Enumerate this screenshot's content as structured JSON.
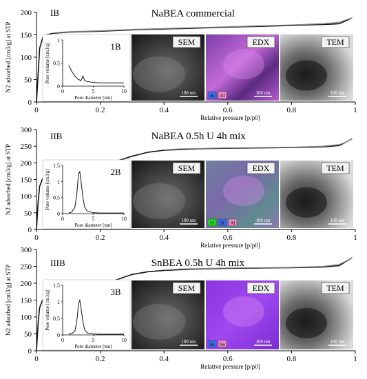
{
  "chart_data": [
    {
      "type": "line",
      "panel": "IB",
      "title": "NaBEA commercial",
      "xlabel": "Relative pressure [p/p0]",
      "ylabel": "N2 adsorbed [cm3/g] at STP",
      "xlim": [
        0,
        1
      ],
      "ylim": [
        0,
        200
      ],
      "xticks": [
        "0",
        "0.2",
        "0.4",
        "0.6",
        "0.8",
        "1"
      ],
      "yticks": [
        "0",
        "50",
        "100",
        "150",
        "200"
      ],
      "series": [
        {
          "kind": "adsorption",
          "x": [
            0,
            0.005,
            0.01,
            0.02,
            0.03,
            0.05,
            0.08,
            0.1,
            0.15,
            0.2,
            0.3,
            0.4,
            0.5,
            0.6,
            0.7,
            0.8,
            0.85,
            0.9,
            0.93,
            0.95,
            0.97,
            0.99
          ],
          "y": [
            0,
            60,
            120,
            145,
            150,
            153,
            155,
            156,
            157,
            158,
            161,
            163,
            165,
            167,
            169,
            171,
            172,
            173,
            174,
            175,
            181,
            188
          ]
        },
        {
          "kind": "desorption",
          "x": [
            0.99,
            0.97,
            0.95,
            0.9,
            0.8,
            0.7,
            0.6,
            0.5,
            0.4,
            0.3,
            0.2,
            0.1,
            0.05
          ],
          "y": [
            188,
            183,
            178,
            175,
            172,
            170,
            168,
            166,
            164,
            162,
            159,
            157,
            154
          ]
        }
      ],
      "inset": {
        "label": "1B",
        "xlabel": "Pore diameter [nm]",
        "ylabel": "Pore volume [cm3/g]",
        "xlim": [
          0,
          10
        ],
        "ylim": [
          0,
          1
        ],
        "xticks": [
          "0",
          "5",
          "10"
        ],
        "yticks": [
          "0",
          "0.5",
          "1"
        ],
        "x": [
          1,
          1.5,
          2,
          2.5,
          3,
          3.3,
          3.6,
          4,
          5,
          6,
          8,
          10
        ],
        "y": [
          0.45,
          0.32,
          0.22,
          0.15,
          0.12,
          0.22,
          0.12,
          0.1,
          0.08,
          0.07,
          0.07,
          0.07
        ]
      },
      "images": [
        {
          "label": "SEM",
          "scale": "100 nm",
          "legend": []
        },
        {
          "label": "EDX",
          "scale": "100 nm",
          "legend": [
            {
              "text": "Si",
              "color": "#3a6ee8"
            },
            {
              "text": "Al",
              "color": "#f08cc8"
            }
          ]
        },
        {
          "label": "TEM",
          "scale": "100 nm",
          "legend": []
        }
      ]
    },
    {
      "type": "line",
      "panel": "IIB",
      "title": "NaBEA 0.5h U 4h mix",
      "xlabel": "Relative pressure [p/p0]",
      "ylabel": "N2 adsorbed [cm3/g] at STP",
      "xlim": [
        0,
        1
      ],
      "ylim": [
        0,
        300
      ],
      "xticks": [
        "0",
        "0.2",
        "0.4",
        "0.6",
        "0.8",
        "1"
      ],
      "yticks": [
        "0",
        "50",
        "100",
        "150",
        "200",
        "250",
        "300"
      ],
      "series": [
        {
          "kind": "adsorption",
          "x": [
            0,
            0.005,
            0.01,
            0.02,
            0.04,
            0.06,
            0.1,
            0.15,
            0.2,
            0.25,
            0.3,
            0.35,
            0.4,
            0.5,
            0.6,
            0.7,
            0.8,
            0.9,
            0.95,
            0.99
          ],
          "y": [
            0,
            80,
            130,
            155,
            163,
            168,
            175,
            182,
            192,
            205,
            220,
            232,
            238,
            242,
            244,
            245,
            246,
            248,
            252,
            272
          ]
        },
        {
          "kind": "desorption",
          "x": [
            0.99,
            0.97,
            0.95,
            0.9,
            0.8,
            0.6,
            0.45,
            0.4
          ],
          "y": [
            272,
            262,
            255,
            250,
            247,
            245,
            242,
            239
          ]
        }
      ],
      "inset": {
        "label": "2B",
        "xlabel": "Pore diameter [nm]",
        "ylabel": "Pore volume [cm3/g]",
        "xlim": [
          0,
          10
        ],
        "ylim": [
          0,
          1.5
        ],
        "xticks": [
          "0",
          "5",
          "10"
        ],
        "yticks": [
          "0",
          "0.5",
          "1",
          "1.5"
        ],
        "x": [
          1,
          1.5,
          2,
          2.3,
          2.6,
          2.8,
          3,
          3.3,
          3.6,
          4,
          5,
          6,
          8,
          10
        ],
        "y": [
          0.02,
          0.05,
          0.2,
          0.6,
          1.25,
          1.3,
          1.0,
          0.5,
          0.2,
          0.08,
          0.03,
          0.02,
          0.02,
          0.02
        ]
      },
      "images": [
        {
          "label": "SEM",
          "scale": "100 nm",
          "legend": []
        },
        {
          "label": "EDX",
          "scale": "100 nm",
          "legend": [
            {
              "text": "O",
              "color": "#22dd22"
            },
            {
              "text": "Si",
              "color": "#3a6ee8"
            },
            {
              "text": "Al",
              "color": "#f08cc8"
            }
          ]
        },
        {
          "label": "TEM",
          "scale": "100 nm",
          "legend": []
        }
      ]
    },
    {
      "type": "line",
      "panel": "IIIB",
      "title": "SnBEA 0.5h U 4h mix",
      "xlabel": "Relative pressure [p/p0]",
      "ylabel": "N2 adsorbed [cm3/g] at STP",
      "xlim": [
        0,
        1
      ],
      "ylim": [
        0,
        300
      ],
      "xticks": [
        "0",
        "0.2",
        "0.4",
        "0.6",
        "0.8",
        "1"
      ],
      "yticks": [
        "0",
        "50",
        "100",
        "150",
        "200",
        "250",
        "300"
      ],
      "series": [
        {
          "kind": "adsorption",
          "x": [
            0,
            0.005,
            0.01,
            0.02,
            0.04,
            0.06,
            0.1,
            0.15,
            0.2,
            0.25,
            0.3,
            0.35,
            0.4,
            0.5,
            0.6,
            0.7,
            0.8,
            0.9,
            0.95,
            0.99
          ],
          "y": [
            0,
            80,
            128,
            152,
            160,
            165,
            172,
            180,
            192,
            210,
            226,
            234,
            238,
            242,
            244,
            245,
            246,
            248,
            252,
            276
          ]
        },
        {
          "kind": "desorption",
          "x": [
            0.99,
            0.97,
            0.95,
            0.9,
            0.8,
            0.6,
            0.45,
            0.4
          ],
          "y": [
            276,
            265,
            256,
            250,
            247,
            245,
            242,
            239
          ]
        }
      ],
      "inset": {
        "label": "3B",
        "xlabel": "Pore diameter [nm]",
        "ylabel": "Pore volume [cm3/g]",
        "xlim": [
          0,
          10
        ],
        "ylim": [
          0,
          1.5
        ],
        "xticks": [
          "0",
          "5",
          "10"
        ],
        "yticks": [
          "0",
          "0.5",
          "1",
          "1.5"
        ],
        "x": [
          1,
          1.5,
          2,
          2.3,
          2.6,
          2.8,
          3,
          3.3,
          3.6,
          4,
          5,
          6,
          8,
          10
        ],
        "y": [
          0.02,
          0.04,
          0.12,
          0.4,
          0.95,
          1.05,
          0.8,
          0.4,
          0.15,
          0.06,
          0.03,
          0.02,
          0.02,
          0.02
        ]
      },
      "images": [
        {
          "label": "SEM",
          "scale": "100 nm",
          "legend": []
        },
        {
          "label": "EDX",
          "scale": "100 nm",
          "legend": [
            {
              "text": "Si",
              "color": "#3a6ee8"
            },
            {
              "text": "Sn",
              "color": "#f08cc8"
            }
          ]
        },
        {
          "label": "TEM",
          "scale": "100 nm",
          "legend": []
        }
      ]
    }
  ]
}
